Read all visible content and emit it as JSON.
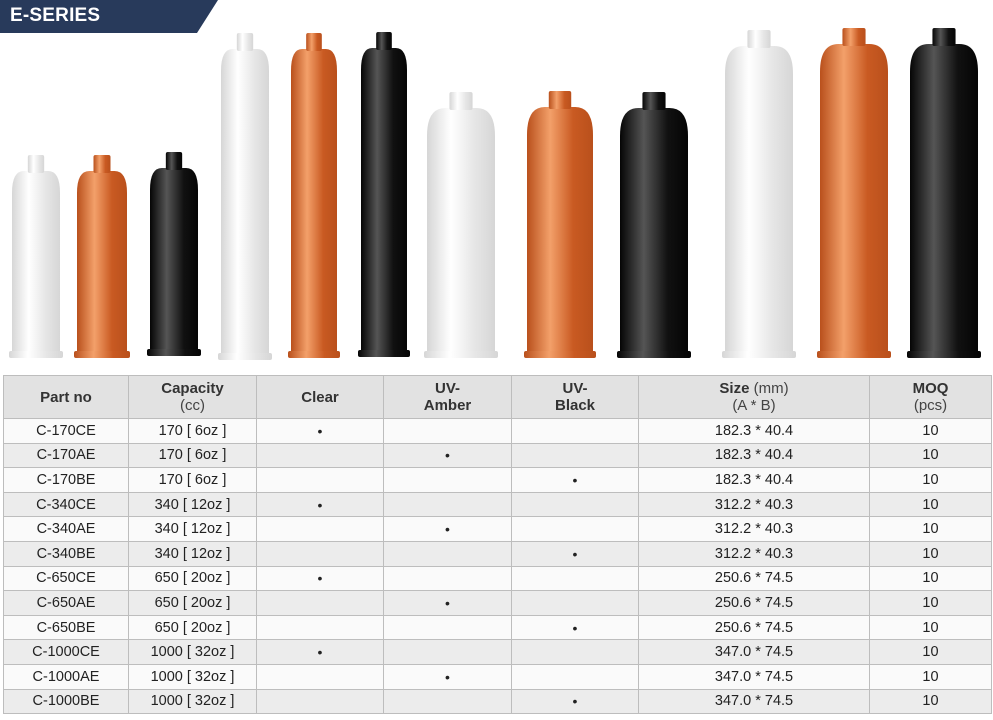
{
  "banner": {
    "title": "E-SERIES",
    "color": "#283a5b"
  },
  "table": {
    "headers": [
      {
        "main": "Part no",
        "sub": ""
      },
      {
        "main": "Capacity",
        "sub": "(cc)"
      },
      {
        "main": "Clear",
        "sub": ""
      },
      {
        "main": "UV-",
        "sub": "Amber"
      },
      {
        "main": "UV-",
        "sub": "Black"
      },
      {
        "main": "Size",
        "unit": "(mm)",
        "sub": "(A * B)"
      },
      {
        "main": "MOQ",
        "sub": "(pcs)"
      }
    ],
    "rows": [
      {
        "part": "C-170CE",
        "capacity": "170 [ 6oz ]",
        "clear": "•",
        "amber": "",
        "black": "",
        "size": "182.3 * 40.4",
        "moq": "10"
      },
      {
        "part": "C-170AE",
        "capacity": "170 [ 6oz ]",
        "clear": "",
        "amber": "•",
        "black": "",
        "size": "182.3 * 40.4",
        "moq": "10"
      },
      {
        "part": "C-170BE",
        "capacity": "170 [ 6oz ]",
        "clear": "",
        "amber": "",
        "black": "•",
        "size": "182.3 * 40.4",
        "moq": "10"
      },
      {
        "part": "C-340CE",
        "capacity": "340 [ 12oz ]",
        "clear": "•",
        "amber": "",
        "black": "",
        "size": "312.2 * 40.3",
        "moq": "10"
      },
      {
        "part": "C-340AE",
        "capacity": "340 [ 12oz ]",
        "clear": "",
        "amber": "•",
        "black": "",
        "size": "312.2 * 40.3",
        "moq": "10"
      },
      {
        "part": "C-340BE",
        "capacity": "340 [ 12oz ]",
        "clear": "",
        "amber": "",
        "black": "•",
        "size": "312.2 * 40.3",
        "moq": "10"
      },
      {
        "part": "C-650CE",
        "capacity": "650 [ 20oz ]",
        "clear": "•",
        "amber": "",
        "black": "",
        "size": "250.6 * 74.5",
        "moq": "10"
      },
      {
        "part": "C-650AE",
        "capacity": "650 [ 20oz ]",
        "clear": "",
        "amber": "•",
        "black": "",
        "size": "250.6 * 74.5",
        "moq": "10"
      },
      {
        "part": "C-650BE",
        "capacity": "650 [ 20oz ]",
        "clear": "",
        "amber": "",
        "black": "•",
        "size": "250.6 * 74.5",
        "moq": "10"
      },
      {
        "part": "C-1000CE",
        "capacity": "1000 [ 32oz ]",
        "clear": "•",
        "amber": "",
        "black": "",
        "size": "347.0 * 74.5",
        "moq": "10"
      },
      {
        "part": "C-1000AE",
        "capacity": "1000 [ 32oz ]",
        "clear": "",
        "amber": "•",
        "black": "",
        "size": "347.0 * 74.5",
        "moq": "10"
      },
      {
        "part": "C-1000BE",
        "capacity": "1000 [ 32oz ]",
        "clear": "",
        "amber": "",
        "black": "•",
        "size": "347.0 * 74.5",
        "moq": "10"
      }
    ]
  },
  "bottles": [
    {
      "name": "cartridge-170-clear",
      "color": "clear"
    },
    {
      "name": "cartridge-170-amber",
      "color": "amber"
    },
    {
      "name": "cartridge-170-black",
      "color": "black"
    },
    {
      "name": "cartridge-340-clear",
      "color": "clear"
    },
    {
      "name": "cartridge-340-amber",
      "color": "amber"
    },
    {
      "name": "cartridge-340-black",
      "color": "black"
    },
    {
      "name": "cartridge-650-clear",
      "color": "clear"
    },
    {
      "name": "cartridge-650-amber",
      "color": "amber"
    },
    {
      "name": "cartridge-650-black",
      "color": "black"
    },
    {
      "name": "cartridge-1000-clear",
      "color": "clear"
    },
    {
      "name": "cartridge-1000-amber",
      "color": "amber"
    },
    {
      "name": "cartridge-1000-black",
      "color": "black"
    }
  ],
  "colors": {
    "clear": "#f2f2f2",
    "amber": "#d96a2b",
    "black": "#1c1c1c",
    "header_bg": "#e2e2e2"
  }
}
